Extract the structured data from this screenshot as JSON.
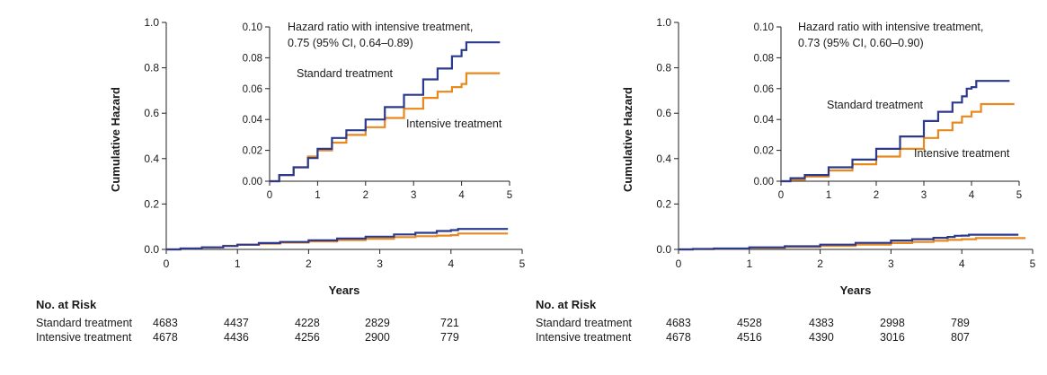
{
  "colors": {
    "standard": "#2b3a8c",
    "intensive": "#e8891e",
    "axis": "#222222"
  },
  "chart_data": [
    {
      "type": "line",
      "ylabel": "Cumulative Hazard",
      "xlabel": "Years",
      "xlim": [
        0,
        5
      ],
      "ylim": [
        0,
        1.0
      ],
      "xticks": [
        "0",
        "1",
        "2",
        "3",
        "4",
        "5"
      ],
      "yticks": [
        "0.0",
        "0.2",
        "0.4",
        "0.6",
        "0.8",
        "1.0"
      ],
      "inset": {
        "xlim": [
          0,
          5
        ],
        "ylim": [
          0,
          0.1
        ],
        "xticks": [
          "0",
          "1",
          "2",
          "3",
          "4",
          "5"
        ],
        "yticks": [
          "0.00",
          "0.02",
          "0.04",
          "0.06",
          "0.08",
          "0.10"
        ],
        "annotation_line1": "Hazard ratio with intensive treatment,",
        "annotation_line2": "0.75 (95% CI, 0.64–0.89)",
        "standard_label": "Standard treatment",
        "intensive_label": "Intensive treatment"
      },
      "series": [
        {
          "name": "Standard treatment",
          "color": "#2b3a8c",
          "x": [
            0,
            0.2,
            0.5,
            0.8,
            1.0,
            1.3,
            1.6,
            2.0,
            2.4,
            2.8,
            3.2,
            3.5,
            3.8,
            4.0,
            4.1,
            4.8
          ],
          "y": [
            0,
            0.004,
            0.009,
            0.015,
            0.021,
            0.028,
            0.033,
            0.04,
            0.048,
            0.056,
            0.066,
            0.073,
            0.081,
            0.085,
            0.09,
            0.09
          ]
        },
        {
          "name": "Intensive treatment",
          "color": "#e8891e",
          "x": [
            0,
            0.2,
            0.5,
            0.8,
            1.0,
            1.3,
            1.6,
            2.0,
            2.4,
            2.8,
            3.2,
            3.5,
            3.8,
            4.0,
            4.1,
            4.8
          ],
          "y": [
            0,
            0.004,
            0.009,
            0.016,
            0.02,
            0.025,
            0.03,
            0.035,
            0.041,
            0.047,
            0.054,
            0.058,
            0.061,
            0.063,
            0.07,
            0.07
          ]
        }
      ],
      "risk": {
        "title": "No. at Risk",
        "rows": [
          {
            "label": "Standard treatment",
            "values": [
              "4683",
              "4437",
              "4228",
              "2829",
              "721"
            ]
          },
          {
            "label": "Intensive treatment",
            "values": [
              "4678",
              "4436",
              "4256",
              "2900",
              "779"
            ]
          }
        ]
      }
    },
    {
      "type": "line",
      "ylabel": "Cumulative Hazard",
      "xlabel": "Years",
      "xlim": [
        0,
        5
      ],
      "ylim": [
        0,
        1.0
      ],
      "xticks": [
        "0",
        "1",
        "2",
        "3",
        "4",
        "5"
      ],
      "yticks": [
        "0.0",
        "0.2",
        "0.4",
        "0.6",
        "0.8",
        "1.0"
      ],
      "inset": {
        "xlim": [
          0,
          5
        ],
        "ylim": [
          0,
          0.1
        ],
        "xticks": [
          "0",
          "1",
          "2",
          "3",
          "4",
          "5"
        ],
        "yticks": [
          "0.00",
          "0.02",
          "0.04",
          "0.06",
          "0.08",
          "0.10"
        ],
        "annotation_line1": "Hazard ratio with intensive treatment,",
        "annotation_line2": "0.73 (95% CI, 0.60–0.90)",
        "standard_label": "Standard treatment",
        "intensive_label": "Intensive treatment"
      },
      "series": [
        {
          "name": "Standard treatment",
          "color": "#2b3a8c",
          "x": [
            0,
            0.2,
            0.5,
            1.0,
            1.5,
            2.0,
            2.5,
            3.0,
            3.3,
            3.6,
            3.8,
            3.9,
            4.0,
            4.1,
            4.8
          ],
          "y": [
            0,
            0.002,
            0.004,
            0.009,
            0.014,
            0.021,
            0.029,
            0.039,
            0.045,
            0.051,
            0.055,
            0.06,
            0.061,
            0.065,
            0.065
          ]
        },
        {
          "name": "Intensive treatment",
          "color": "#e8891e",
          "x": [
            0,
            0.2,
            0.5,
            1.0,
            1.5,
            2.0,
            2.5,
            3.0,
            3.3,
            3.6,
            3.8,
            4.0,
            4.2,
            4.9
          ],
          "y": [
            0,
            0.001,
            0.003,
            0.007,
            0.011,
            0.016,
            0.021,
            0.028,
            0.033,
            0.038,
            0.042,
            0.045,
            0.05,
            0.05
          ]
        }
      ],
      "risk": {
        "title": "No. at Risk",
        "rows": [
          {
            "label": "Standard treatment",
            "values": [
              "4683",
              "4528",
              "4383",
              "2998",
              "789"
            ]
          },
          {
            "label": "Intensive treatment",
            "values": [
              "4678",
              "4516",
              "4390",
              "3016",
              "807"
            ]
          }
        ]
      }
    }
  ]
}
